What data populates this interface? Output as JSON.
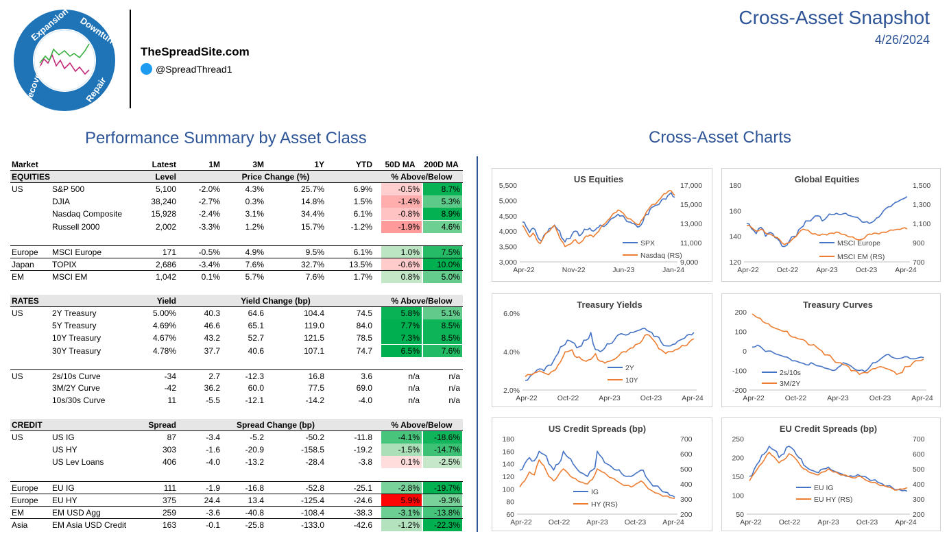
{
  "header": {
    "site": "TheSpreadSite.com",
    "handle": "@SpreadThread1",
    "title": "Cross-Asset Snapshot",
    "date": "4/26/2024",
    "logo_words": [
      "Expansion",
      "Downturn",
      "Repair",
      "Recovery"
    ]
  },
  "sections": {
    "left_title": "Performance Summary by Asset Class",
    "right_title": "Cross-Asset Charts"
  },
  "colors": {
    "blue": "#4472c4",
    "orange": "#ed7d31",
    "title_blue": "#2e5597",
    "green_strong": "#00b050",
    "red_strong": "#ff0000"
  },
  "table": {
    "columns": [
      "Market",
      "",
      "Latest",
      "1M",
      "3M",
      "1Y",
      "YTD",
      "50D MA",
      "200D MA"
    ],
    "rows": [
      {
        "type": "colhdr",
        "cells": [
          "Market",
          "",
          "Latest",
          "1M",
          "3M",
          "1Y",
          "YTD",
          "50D MA",
          "200D MA"
        ]
      },
      {
        "type": "sechdr",
        "name": "EQUITIES",
        "level": "Level",
        "change": "Price Change (%)",
        "ma": "% Above/Below"
      },
      {
        "type": "data",
        "cells": [
          "US",
          "S&P 500",
          "5,100",
          "-2.0%",
          "4.3%",
          "25.7%",
          "6.9%",
          "-0.5%",
          "8.7%"
        ],
        "ma50": -0.5,
        "ma200": 8.7
      },
      {
        "type": "data",
        "cells": [
          "",
          "DJIA",
          "38,240",
          "-2.7%",
          "0.3%",
          "14.8%",
          "1.5%",
          "-1.4%",
          "5.3%"
        ],
        "ma50": -1.4,
        "ma200": 5.3
      },
      {
        "type": "data",
        "cells": [
          "",
          "Nasdaq Composite",
          "15,928",
          "-2.4%",
          "3.1%",
          "34.4%",
          "6.1%",
          "-0.8%",
          "8.9%"
        ],
        "ma50": -0.8,
        "ma200": 8.9
      },
      {
        "type": "data",
        "cells": [
          "",
          "Russell 2000",
          "2,002",
          "-3.3%",
          "1.2%",
          "15.7%",
          "-1.2%",
          "-1.9%",
          "4.6%"
        ],
        "ma50": -1.9,
        "ma200": 4.6
      },
      {
        "type": "blank"
      },
      {
        "type": "data",
        "topline": true,
        "cells": [
          "Europe",
          "MSCI Europe",
          "171",
          "-0.5%",
          "4.9%",
          "9.5%",
          "6.1%",
          "1.0%",
          "7.5%"
        ],
        "ma50": 1.0,
        "ma200": 7.5
      },
      {
        "type": "data",
        "topline": true,
        "cells": [
          "Japan",
          "TOPIX",
          "2,686",
          "-3.4%",
          "7.6%",
          "32.7%",
          "13.5%",
          "-0.6%",
          "10.0%"
        ],
        "ma50": -0.6,
        "ma200": 10.0
      },
      {
        "type": "data",
        "topline": true,
        "cells": [
          "EM",
          "MSCI EM",
          "1,042",
          "0.1%",
          "5.7%",
          "7.6%",
          "1.7%",
          "0.8%",
          "5.0%"
        ],
        "ma50": 0.8,
        "ma200": 5.0
      },
      {
        "type": "blank"
      },
      {
        "type": "sechdr",
        "name": "RATES",
        "level": "Yield",
        "change": "Yield Change (bp)",
        "ma": "% Above/Below"
      },
      {
        "type": "data",
        "cells": [
          "US",
          "2Y Treasury",
          "5.00%",
          "40.3",
          "64.6",
          "104.4",
          "74.5",
          "5.8%",
          "5.1%"
        ],
        "ma50": 5.8,
        "ma200": 5.1
      },
      {
        "type": "data",
        "cells": [
          "",
          "5Y Treasury",
          "4.69%",
          "46.6",
          "65.1",
          "119.0",
          "84.0",
          "7.7%",
          "8.5%"
        ],
        "ma50": 7.7,
        "ma200": 8.5
      },
      {
        "type": "data",
        "cells": [
          "",
          "10Y Treasury",
          "4.67%",
          "43.2",
          "52.7",
          "121.5",
          "78.5",
          "7.3%",
          "8.5%"
        ],
        "ma50": 7.3,
        "ma200": 8.5
      },
      {
        "type": "data",
        "cells": [
          "",
          "30Y Treasury",
          "4.78%",
          "37.7",
          "40.6",
          "107.1",
          "74.7",
          "6.5%",
          "7.6%"
        ],
        "ma50": 6.5,
        "ma200": 7.6
      },
      {
        "type": "blank"
      },
      {
        "type": "data",
        "topline": true,
        "cells": [
          "US",
          "2s/10s Curve",
          "-34",
          "2.7",
          "-12.3",
          "16.8",
          "3.6",
          "n/a",
          "n/a"
        ]
      },
      {
        "type": "data",
        "cells": [
          "",
          "3M/2Y Curve",
          "-42",
          "36.2",
          "60.0",
          "77.5",
          "69.0",
          "n/a",
          "n/a"
        ]
      },
      {
        "type": "data",
        "cells": [
          "",
          "10s/30s Curve",
          "11",
          "-5.5",
          "-12.1",
          "-14.2",
          "-4.0",
          "n/a",
          "n/a"
        ]
      },
      {
        "type": "blank"
      },
      {
        "type": "sechdr",
        "name": "CREDIT",
        "level": "Spread",
        "change": "Spread Change (bp)",
        "ma": "% Above/Below"
      },
      {
        "type": "data",
        "cells": [
          "US",
          "US IG",
          "87",
          "-3.4",
          "-5.2",
          "-50.2",
          "-11.8",
          "-4.1%",
          "-18.6%"
        ],
        "ma50": -4.1,
        "ma200": -18.6,
        "credit": true
      },
      {
        "type": "data",
        "cells": [
          "",
          "US HY",
          "303",
          "-1.6",
          "-20.9",
          "-158.5",
          "-19.2",
          "-1.5%",
          "-14.7%"
        ],
        "ma50": -1.5,
        "ma200": -14.7,
        "credit": true
      },
      {
        "type": "data",
        "cells": [
          "",
          "US Lev Loans",
          "406",
          "-4.0",
          "-13.2",
          "-28.4",
          "-3.8",
          "0.1%",
          "-2.5%"
        ],
        "ma50": 0.1,
        "ma200": -2.5,
        "credit": true
      },
      {
        "type": "blank"
      },
      {
        "type": "data",
        "topline": true,
        "cells": [
          "Europe",
          "EU IG",
          "111",
          "-1.9",
          "-16.8",
          "-52.8",
          "-25.1",
          "-2.8%",
          "-19.7%"
        ],
        "ma50": -2.8,
        "ma200": -19.7,
        "credit": true
      },
      {
        "type": "data",
        "topline": true,
        "cells": [
          "Europe",
          "EU HY",
          "375",
          "24.4",
          "13.4",
          "-125.4",
          "-24.6",
          "5.9%",
          "-9.3%"
        ],
        "ma50": 5.9,
        "ma200": -9.3,
        "credit": true
      },
      {
        "type": "data",
        "topline": true,
        "cells": [
          "EM",
          "EM USD Agg",
          "259",
          "-3.6",
          "-40.8",
          "-108.4",
          "-38.3",
          "-3.1%",
          "-13.8%"
        ],
        "ma50": -3.1,
        "ma200": -13.8,
        "credit": true
      },
      {
        "type": "data",
        "topline": true,
        "cells": [
          "Asia",
          "EM Asia USD Credit",
          "163",
          "-0.1",
          "-25.8",
          "-133.0",
          "-42.6",
          "-1.2%",
          "-22.3%"
        ],
        "ma50": -1.2,
        "ma200": -22.3,
        "credit": true
      }
    ]
  },
  "chart_data": [
    {
      "type": "line",
      "title": "US Equities",
      "x_ticks": [
        "Apr-22",
        "Nov-22",
        "Jun-23",
        "Jan-24"
      ],
      "y_ticks": [
        "5,500",
        "5,000",
        "4,500",
        "4,000",
        "3,500",
        "3,000"
      ],
      "ylim": [
        3000,
        5500
      ],
      "y2_ticks": [
        "17,000",
        "15,000",
        "13,000",
        "11,000",
        "9,000"
      ],
      "y2lim": [
        9000,
        17000
      ],
      "legend": [
        "SPX",
        "Nasdaq (RS)"
      ],
      "series": [
        {
          "name": "SPX",
          "axis": "left",
          "values": [
            4300,
            4150,
            3950,
            4100,
            3900,
            3700,
            3850,
            3950,
            4100,
            4200,
            4050,
            3800,
            3650,
            3750,
            3900,
            4000,
            3850,
            3950,
            4050,
            4100,
            4000,
            4100,
            4200,
            4150,
            4250,
            4400,
            4450,
            4550,
            4500,
            4400,
            4300,
            4250,
            4200,
            4150,
            4300,
            4550,
            4700,
            4800,
            4850,
            4950,
            5050,
            5150,
            5250,
            5100
          ]
        },
        {
          "name": "Nasdaq (RS)",
          "axis": "right",
          "values": [
            12800,
            12200,
            11600,
            12000,
            11300,
            10900,
            11600,
            12100,
            12400,
            12800,
            12000,
            11200,
            10600,
            10800,
            11000,
            11300,
            10900,
            11200,
            11700,
            11800,
            11600,
            12000,
            12500,
            12900,
            13300,
            13700,
            14100,
            14400,
            14200,
            13800,
            13500,
            13300,
            13000,
            12900,
            13500,
            14200,
            14700,
            15000,
            15200,
            15600,
            16100,
            16300,
            16400,
            15930
          ]
        }
      ]
    },
    {
      "type": "line",
      "title": "Global Equities",
      "x_ticks": [
        "Apr-22",
        "Oct-22",
        "Apr-23",
        "Oct-23",
        "Apr-24"
      ],
      "y_ticks": [
        "180",
        "160",
        "140",
        "120"
      ],
      "ylim": [
        120,
        180
      ],
      "y2_ticks": [
        "1,500",
        "1,300",
        "1,100",
        "900",
        "700"
      ],
      "y2lim": [
        700,
        1500
      ],
      "legend": [
        "MSCI Europe",
        "MSCI EM (RS)"
      ],
      "series": [
        {
          "name": "MSCI Europe",
          "axis": "left",
          "values": [
            150,
            146,
            142,
            147,
            140,
            143,
            139,
            136,
            132,
            136,
            140,
            145,
            148,
            152,
            154,
            156,
            152,
            155,
            157,
            158,
            157,
            158,
            156,
            155,
            153,
            151,
            150,
            152,
            155,
            160,
            163,
            165,
            167,
            169,
            171
          ]
        },
        {
          "name": "MSCI EM (RS)",
          "axis": "right",
          "values": [
            1080,
            1060,
            1020,
            1040,
            1000,
            990,
            960,
            930,
            880,
            900,
            950,
            1000,
            1040,
            1030,
            990,
            980,
            990,
            980,
            1000,
            1010,
            990,
            980,
            960,
            940,
            930,
            950,
            990,
            1000,
            990,
            1010,
            1020,
            1030,
            1040,
            1050,
            1042
          ]
        }
      ]
    },
    {
      "type": "line",
      "title": "Treasury Yields",
      "x_ticks": [
        "Apr-22",
        "Oct-22",
        "Apr-23",
        "Oct-23",
        "Apr-24"
      ],
      "y_ticks": [
        "6.0%",
        "4.0%",
        "2.0%"
      ],
      "ylim": [
        2.0,
        6.0
      ],
      "legend": [
        "2Y",
        "10Y"
      ],
      "series": [
        {
          "name": "2Y",
          "values": [
            2.5,
            2.7,
            2.9,
            3.1,
            3.0,
            3.3,
            3.5,
            3.9,
            4.3,
            4.6,
            4.5,
            4.2,
            4.3,
            4.6,
            5.0,
            4.1,
            4.0,
            4.2,
            4.4,
            4.6,
            4.9,
            4.9,
            4.9,
            5.0,
            5.1,
            5.2,
            5.1,
            5.0,
            4.8,
            4.5,
            4.3,
            4.3,
            4.4,
            4.6,
            4.7,
            4.9,
            5.0
          ]
        },
        {
          "name": "10Y",
          "values": [
            2.7,
            2.8,
            2.9,
            3.0,
            2.9,
            2.8,
            3.0,
            3.3,
            3.7,
            4.0,
            4.1,
            3.7,
            3.6,
            3.5,
            3.6,
            3.9,
            3.5,
            3.4,
            3.5,
            3.6,
            3.8,
            4.0,
            4.1,
            4.2,
            4.4,
            4.6,
            4.9,
            4.7,
            4.4,
            4.1,
            3.9,
            4.0,
            4.1,
            4.2,
            4.3,
            4.5,
            4.67
          ]
        }
      ]
    },
    {
      "type": "line",
      "title": "Treasury Curves",
      "x_ticks": [
        "Apr-22",
        "Oct-22",
        "Apr-23",
        "Oct-23",
        "Apr-24"
      ],
      "y_ticks": [
        "200",
        "100",
        "0",
        "-100",
        "-200"
      ],
      "ylim": [
        -200,
        200
      ],
      "legend": [
        "2s/10s",
        "3M/2Y"
      ],
      "series": [
        {
          "name": "2s/10s",
          "values": [
            20,
            30,
            10,
            0,
            -10,
            -20,
            -30,
            -40,
            -50,
            -60,
            -70,
            -60,
            -75,
            -80,
            -90,
            -100,
            -85,
            -60,
            -70,
            -90,
            -100,
            -105,
            -80,
            -60,
            -40,
            -20,
            -30,
            -40,
            -35,
            -30,
            -40,
            -35,
            -34
          ]
        },
        {
          "name": "3M/2Y",
          "values": [
            190,
            170,
            150,
            140,
            120,
            110,
            100,
            80,
            70,
            60,
            50,
            30,
            20,
            0,
            -20,
            -40,
            -60,
            -70,
            -80,
            -100,
            -120,
            -110,
            -100,
            -90,
            -80,
            -90,
            -100,
            -120,
            -110,
            -80,
            -60,
            -50,
            -42
          ]
        }
      ]
    },
    {
      "type": "line",
      "title": "US Credit Spreads (bp)",
      "x_ticks": [
        "Apr-22",
        "Oct-22",
        "Apr-23",
        "Oct-23",
        "Apr-24"
      ],
      "y_ticks": [
        "180",
        "160",
        "140",
        "120",
        "100",
        "80",
        "60"
      ],
      "ylim": [
        60,
        180
      ],
      "y2_ticks": [
        "700",
        "600",
        "500",
        "400",
        "300",
        "200"
      ],
      "y2lim": [
        200,
        700
      ],
      "legend": [
        "IG",
        "HY (RS)"
      ],
      "series": [
        {
          "name": "IG",
          "axis": "left",
          "values": [
            130,
            140,
            150,
            145,
            160,
            155,
            140,
            130,
            140,
            160,
            150,
            140,
            130,
            125,
            120,
            130,
            160,
            150,
            140,
            135,
            130,
            125,
            120,
            120,
            125,
            130,
            120,
            110,
            105,
            100,
            95,
            90,
            87
          ]
        },
        {
          "name": "HY (RS)",
          "axis": "right",
          "values": [
            380,
            420,
            480,
            460,
            560,
            520,
            450,
            420,
            460,
            500,
            470,
            440,
            420,
            410,
            400,
            430,
            500,
            480,
            460,
            440,
            420,
            400,
            390,
            380,
            400,
            420,
            390,
            360,
            340,
            330,
            320,
            310,
            303
          ]
        }
      ]
    },
    {
      "type": "line",
      "title": "EU Credit Spreads (bp)",
      "x_ticks": [
        "Apr-22",
        "Oct-22",
        "Apr-23",
        "Oct-23",
        "Apr-24"
      ],
      "y_ticks": [
        "250",
        "200",
        "150",
        "100",
        "50"
      ],
      "ylim": [
        50,
        250
      ],
      "y2_ticks": [
        "700",
        "600",
        "500",
        "400",
        "300",
        "200"
      ],
      "y2lim": [
        200,
        700
      ],
      "legend": [
        "EU IG",
        "EU HY (RS)"
      ],
      "series": [
        {
          "name": "EU IG",
          "axis": "left",
          "values": [
            150,
            170,
            190,
            210,
            230,
            220,
            200,
            210,
            230,
            220,
            200,
            180,
            170,
            165,
            160,
            170,
            175,
            165,
            160,
            155,
            150,
            150,
            155,
            150,
            145,
            140,
            135,
            130,
            125,
            120,
            115,
            112,
            111
          ]
        },
        {
          "name": "EU HY (RS)",
          "axis": "right",
          "values": [
            420,
            470,
            520,
            560,
            610,
            580,
            540,
            560,
            600,
            580,
            540,
            500,
            480,
            470,
            460,
            480,
            500,
            480,
            470,
            460,
            450,
            440,
            450,
            440,
            420,
            410,
            400,
            390,
            380,
            370,
            360,
            365,
            375
          ]
        }
      ]
    }
  ]
}
